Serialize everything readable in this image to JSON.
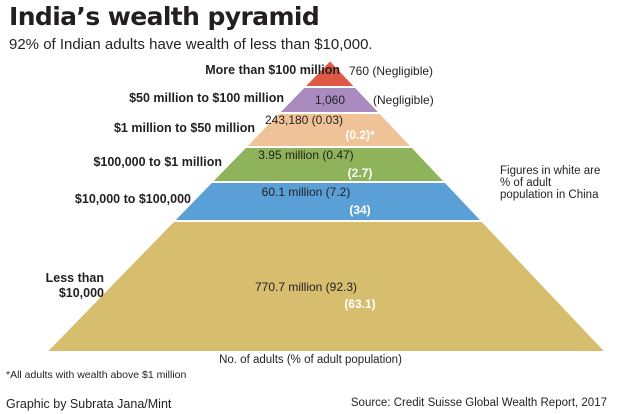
{
  "title": "India’s wealth pyramid",
  "subtitle": "92% of Indian adults have wealth of less than $10,000.",
  "side_note": "Figures in white are % of adult population in China",
  "footnote": "*All adults with wealth above $1 million",
  "credit": "Graphic by Subrata Jana/Mint",
  "source": "Source: Credit Suisse Global Wealth Report, 2017",
  "colors": {
    "tier_top": "#df5a44",
    "tier_2": "#a98bc0",
    "tier_3": "#f0c297",
    "tier_4": "#8fb35a",
    "tier_5": "#5aa0d7",
    "tier_base": "#d7bd6e",
    "china_text": "#ffffff"
  },
  "chart_data": {
    "type": "pyramid",
    "xlabel": "No. of adults (% of adult population)",
    "series": [
      {
        "name": "India"
      },
      {
        "name": "China (% of adult population)"
      }
    ],
    "tiers": [
      {
        "category": "More than $100 million",
        "value_label": "760 (Negligible)",
        "adults": 760,
        "india_pct": null,
        "china_label": "",
        "china_pct": null
      },
      {
        "category": "$50 million to $100 million",
        "value_label": "1,060",
        "value_suffix": "(Negligible)",
        "adults": 1060,
        "india_pct": null,
        "china_label": "",
        "china_pct": null
      },
      {
        "category": "$1 million to $50 million",
        "value_label": "243,180 (0.03)",
        "adults": 243180,
        "india_pct": 0.03,
        "china_label": "(0.2)*",
        "china_pct": 0.2
      },
      {
        "category": "$100,000 to $1 million",
        "value_label": "3.95 million (0.47)",
        "adults": 3950000,
        "india_pct": 0.47,
        "china_label": "(2.7)",
        "china_pct": 2.7
      },
      {
        "category": "$10,000 to $100,000",
        "value_label": "60.1 million (7.2)",
        "adults": 60100000,
        "india_pct": 7.2,
        "china_label": "(34)",
        "china_pct": 34
      },
      {
        "category": "Less than $10,000",
        "category_lines": [
          "Less than",
          "$10,000"
        ],
        "value_label": "770.7 million (92.3)",
        "adults": 770700000,
        "india_pct": 92.3,
        "china_label": "(63.1)",
        "china_pct": 63.1
      }
    ]
  }
}
